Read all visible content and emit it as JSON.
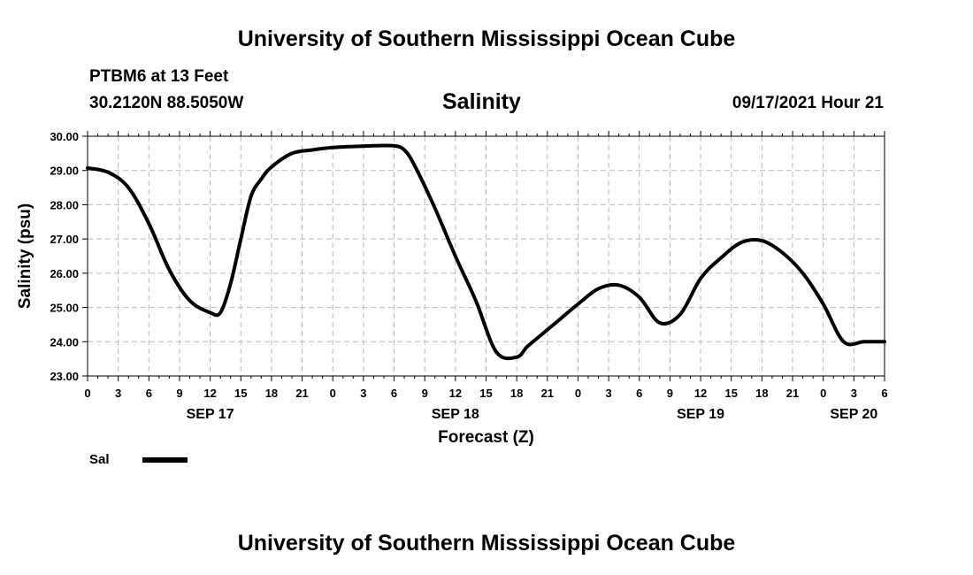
{
  "header": {
    "title": "University of Southern Mississippi Ocean Cube",
    "station": "PTBM6 at 13 Feet",
    "coordinates": "30.2120N  88.5050W",
    "chart_title": "Salinity",
    "timestamp": "09/17/2021 Hour 21"
  },
  "footer": {
    "title": "University of Southern Mississippi Ocean Cube"
  },
  "legend": {
    "label": "Sal"
  },
  "chart_data": {
    "type": "line",
    "title": "Salinity",
    "xlabel": "Forecast (Z)",
    "ylabel": "Salinity (psu)",
    "ylim": [
      23.0,
      30.0
    ],
    "xlim_hours": [
      0,
      78
    ],
    "grid": true,
    "legend_position": "bottom-left",
    "y_ticks": [
      "23.00",
      "24.00",
      "25.00",
      "26.00",
      "27.00",
      "28.00",
      "29.00",
      "30.00"
    ],
    "x_tick_labels": [
      "0",
      "3",
      "6",
      "9",
      "12",
      "15",
      "18",
      "21",
      "0",
      "3",
      "6",
      "9",
      "12",
      "15",
      "18",
      "21",
      "0",
      "3",
      "6",
      "9",
      "12",
      "15",
      "18",
      "21",
      "0",
      "3",
      "6"
    ],
    "date_labels": [
      {
        "label": "SEP 17",
        "hour": 12
      },
      {
        "label": "SEP 18",
        "hour": 36
      },
      {
        "label": "SEP 19",
        "hour": 60
      },
      {
        "label": "SEP 20",
        "hour": 75
      }
    ],
    "series": [
      {
        "name": "Sal",
        "color": "#000000",
        "x": [
          0,
          2,
          4,
          6,
          8,
          10,
          12,
          13,
          14,
          15,
          16,
          17,
          18,
          20,
          22,
          24,
          26,
          28,
          30,
          31,
          32,
          34,
          36,
          38,
          40,
          42,
          43,
          44,
          46,
          48,
          50,
          52,
          54,
          56,
          58,
          60,
          62,
          64,
          66,
          68,
          70,
          72,
          74,
          76,
          78
        ],
        "values": [
          29.07,
          28.95,
          28.5,
          27.45,
          26.1,
          25.2,
          24.85,
          24.85,
          25.7,
          27.0,
          28.25,
          28.75,
          29.1,
          29.5,
          29.6,
          29.67,
          29.7,
          29.72,
          29.72,
          29.6,
          29.15,
          27.9,
          26.5,
          25.2,
          23.7,
          23.55,
          23.85,
          24.1,
          24.6,
          25.1,
          25.55,
          25.65,
          25.3,
          24.55,
          24.8,
          25.85,
          26.45,
          26.9,
          26.95,
          26.6,
          26.0,
          25.1,
          24.0,
          24.0,
          24.0
        ]
      }
    ]
  }
}
